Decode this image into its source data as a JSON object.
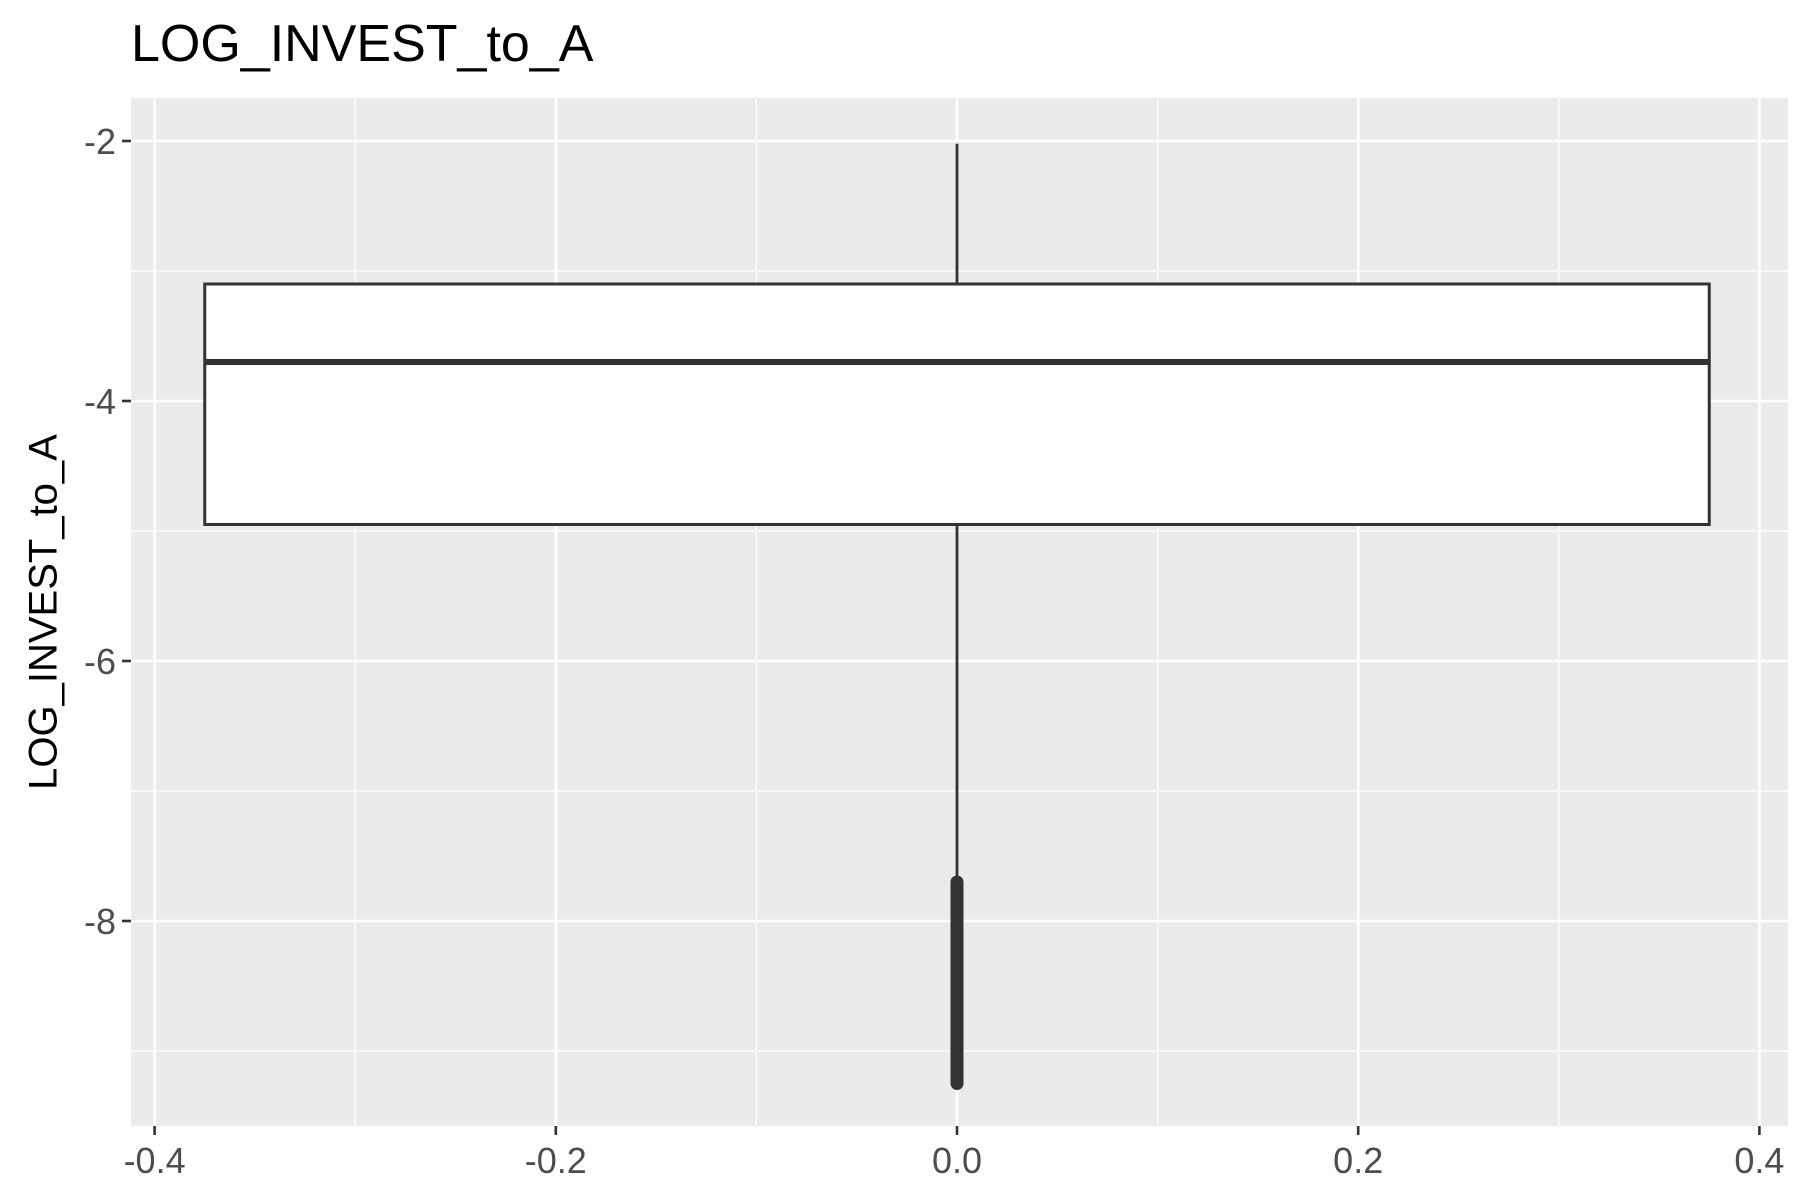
{
  "chart_data": {
    "type": "boxplot",
    "title": "LOG_INVEST_to_A",
    "xlabel": "",
    "ylabel": "LOG_INVEST_to_A",
    "xlim": [
      -0.4,
      0.4
    ],
    "ylim": [
      -9.5,
      -1.7
    ],
    "x_ticks": [
      -0.4,
      -0.2,
      0.0,
      0.2,
      0.4
    ],
    "x_tick_labels": [
      "-0.4",
      "-0.2",
      "0.0",
      "0.2",
      "0.4"
    ],
    "y_ticks": [
      -8,
      -6,
      -4,
      -2
    ],
    "y_tick_labels": [
      "-8",
      "-6",
      "-4",
      "-2"
    ],
    "grid": true,
    "box": {
      "x": 0.0,
      "half_width": 0.375,
      "q1": -4.95,
      "median": -3.7,
      "q3": -3.1,
      "whisker_low": -7.7,
      "whisker_high": -2.02,
      "outlier_range": [
        -9.25,
        -7.7
      ]
    },
    "colors": {
      "panel_background": "#ebebeb",
      "grid": "#ffffff",
      "box_fill": "#ffffff",
      "box_line": "#333333"
    }
  }
}
